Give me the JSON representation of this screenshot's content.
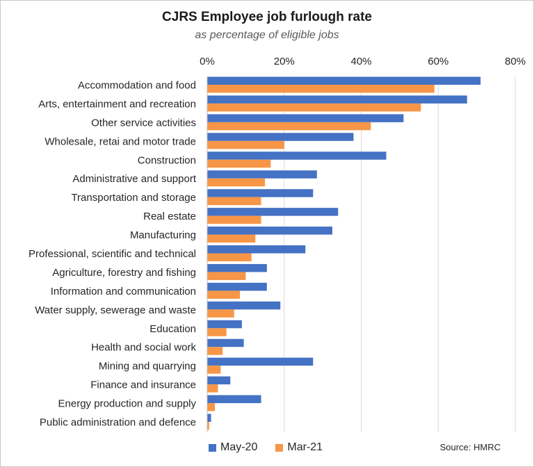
{
  "chart_data": {
    "type": "bar",
    "orientation": "horizontal",
    "title": "CJRS Employee job furlough rate",
    "subtitle": "as percentage of eligible jobs",
    "source": "Source: HMRC",
    "xlim": [
      0,
      80
    ],
    "xticks": [
      "0%",
      "20%",
      "40%",
      "60%",
      "80%"
    ],
    "xtick_values": [
      0,
      20,
      40,
      60,
      80
    ],
    "grid": "vertical",
    "legend_position": "bottom",
    "categories": [
      "Accommodation and food",
      "Arts, entertainment and recreation",
      "Other service activities",
      "Wholesale, retai and motor trade",
      "Construction",
      "Administrative and support",
      "Transportation and storage",
      "Real estate",
      "Manufacturing",
      "Professional, scientific and technical",
      "Agriculture, forestry and fishing",
      "Information and communication",
      "Water supply, sewerage and waste",
      "Education",
      "Health and social work",
      "Mining and quarrying",
      "Finance and insurance",
      "Energy production and supply",
      "Public administration and defence"
    ],
    "series": [
      {
        "name": "May-20",
        "color": "#4472c4",
        "values": [
          71,
          67.5,
          51,
          38,
          46.5,
          28.5,
          27.5,
          34,
          32.5,
          25.5,
          15.5,
          15.5,
          19,
          9,
          9.5,
          27.5,
          6,
          14,
          1
        ]
      },
      {
        "name": "Mar-21",
        "color": "#f79646",
        "values": [
          59,
          55.5,
          42.5,
          20,
          16.5,
          15,
          14,
          14,
          12.5,
          11.5,
          10,
          8.5,
          7,
          5,
          4,
          3.5,
          2.8,
          2,
          0.5
        ]
      }
    ]
  }
}
